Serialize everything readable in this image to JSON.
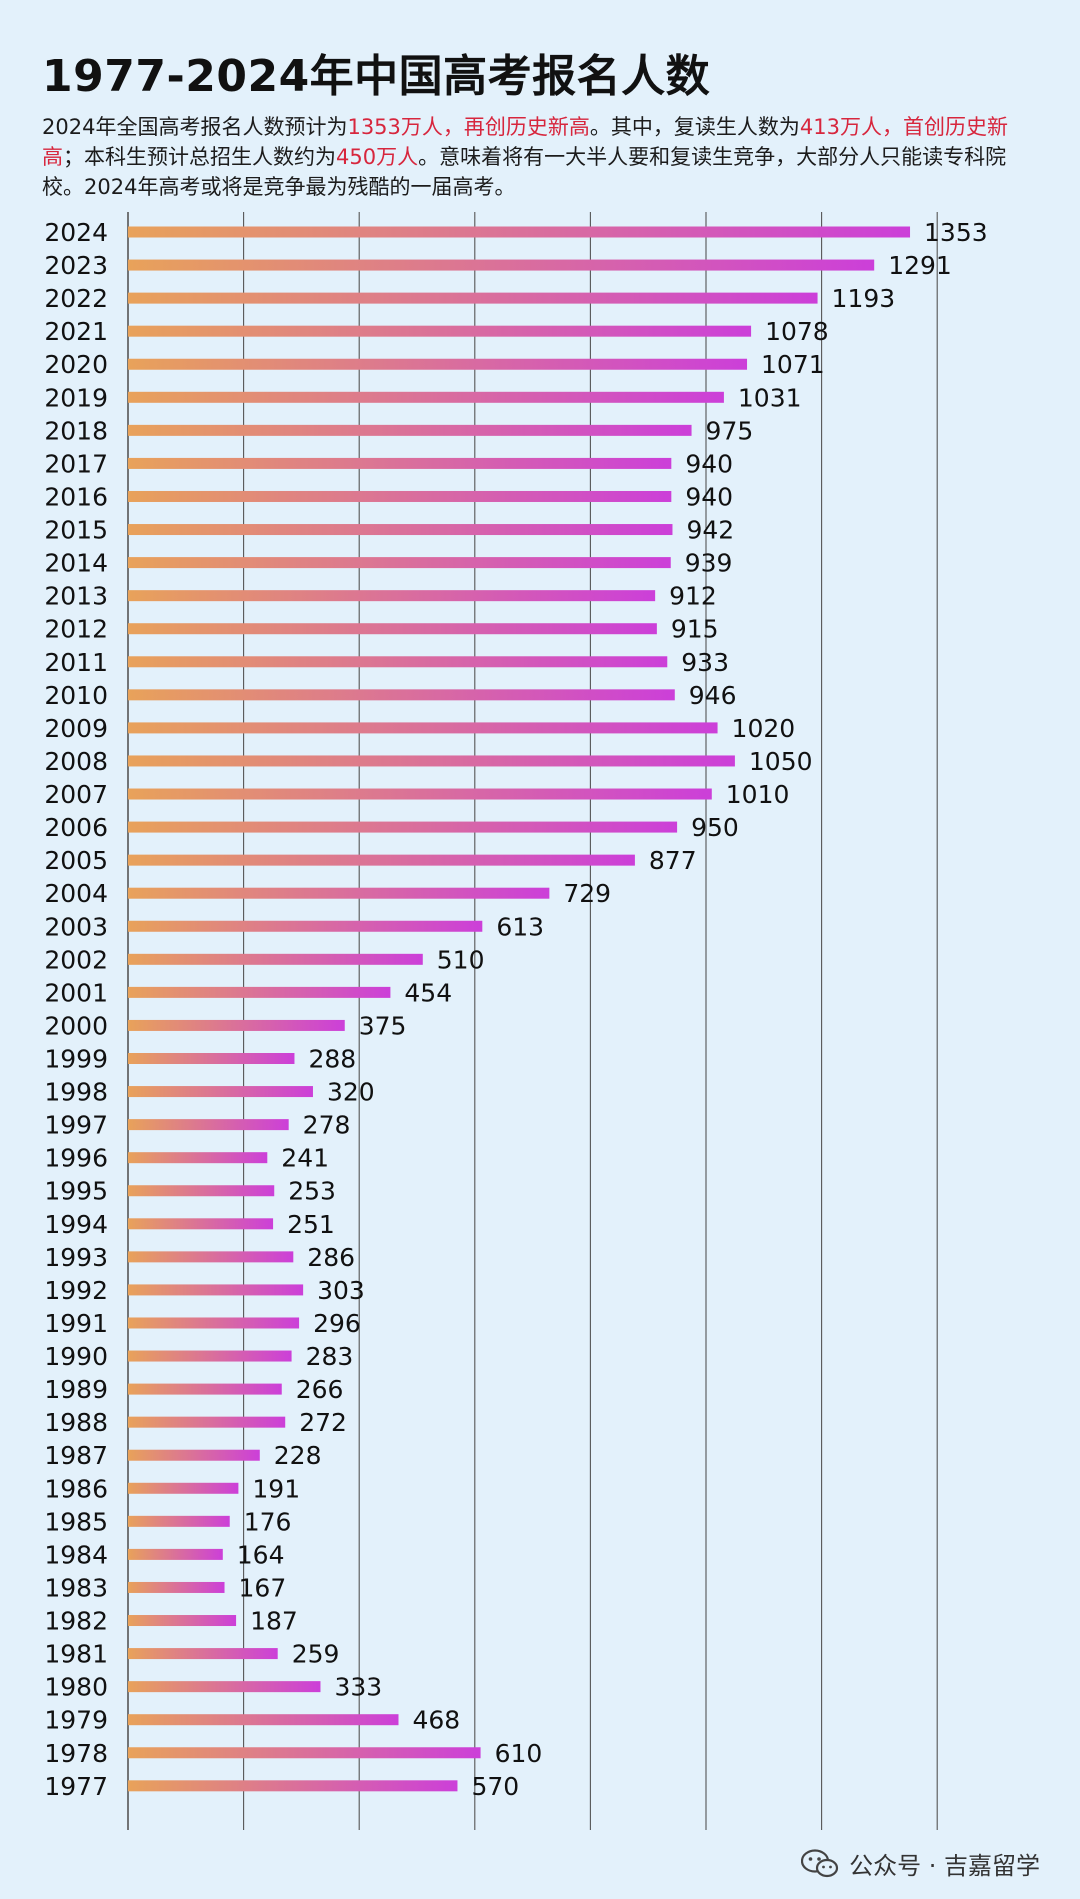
{
  "title": "1977-2024年中国高考报名人数",
  "intro": {
    "p1": "2024年全国高考报名人数预计为",
    "h1": "1353万人，再创历史新高",
    "p2": "。其中，复读生人数为",
    "h2": "413万人，首创历史新高",
    "p3": "；本科生预计总招生人数约为",
    "h3": "450万人",
    "p4": "。意味着将有一大半人要和复读生竞争，大部分人只能读专科院校。2024年高考或将是竞争最为残酷的一届高考。"
  },
  "colors": {
    "highlight": "#d7263d",
    "bar_start": "#e8a25a",
    "bar_end": "#cc3fd9",
    "grid": "#555555"
  },
  "chart_data": {
    "type": "bar",
    "orientation": "horizontal",
    "title": "1977-2024年中国高考报名人数",
    "categories": [
      "2024",
      "2023",
      "2022",
      "2021",
      "2020",
      "2019",
      "2018",
      "2017",
      "2016",
      "2015",
      "2014",
      "2013",
      "2012",
      "2011",
      "2010",
      "2009",
      "2008",
      "2007",
      "2006",
      "2005",
      "2004",
      "2003",
      "2002",
      "2001",
      "2000",
      "1999",
      "1998",
      "1997",
      "1996",
      "1995",
      "1994",
      "1993",
      "1992",
      "1991",
      "1990",
      "1989",
      "1988",
      "1987",
      "1986",
      "1985",
      "1984",
      "1983",
      "1982",
      "1981",
      "1980",
      "1979",
      "1978",
      "1977"
    ],
    "values": [
      1353,
      1291,
      1193,
      1078,
      1071,
      1031,
      975,
      940,
      940,
      942,
      939,
      912,
      915,
      933,
      946,
      1020,
      1050,
      1010,
      950,
      877,
      729,
      613,
      510,
      454,
      375,
      288,
      320,
      278,
      241,
      253,
      251,
      286,
      303,
      296,
      283,
      266,
      272,
      228,
      191,
      176,
      164,
      167,
      187,
      259,
      333,
      468,
      610,
      570
    ],
    "xlim": [
      0,
      1400
    ],
    "grid": true,
    "data_labels": true
  },
  "footer": {
    "icon": "wechat-icon",
    "text": "公众号 · 吉嘉留学"
  }
}
